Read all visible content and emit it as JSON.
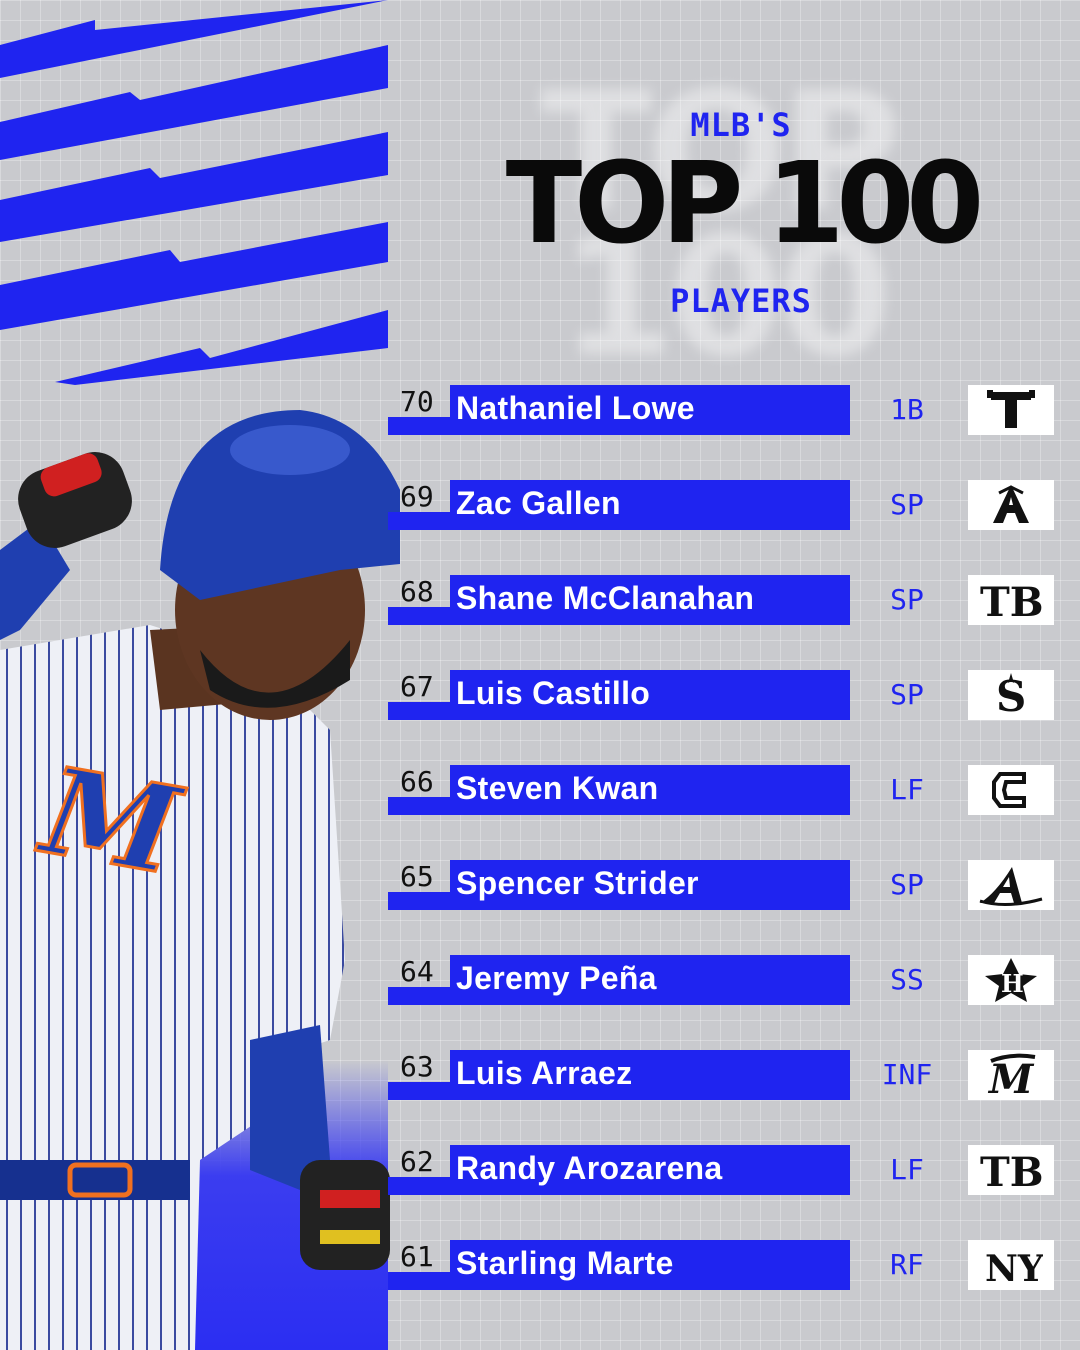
{
  "header": {
    "kicker": "MLB'S",
    "title": "TOP 100",
    "subtitle": "PLAYERS",
    "ghost_top": "TOP",
    "ghost_bottom": "100"
  },
  "colors": {
    "accent": "#1f24f0",
    "background": "#c9cace",
    "title": "#0a0a0a"
  },
  "players": [
    {
      "rank": "70",
      "name": "Nathaniel Lowe",
      "position": "1B",
      "team_logo": "rangers-logo-icon"
    },
    {
      "rank": "69",
      "name": "Zac Gallen",
      "position": "SP",
      "team_logo": "diamondbacks-logo-icon"
    },
    {
      "rank": "68",
      "name": "Shane McClanahan",
      "position": "SP",
      "team_logo": "rays-logo-icon"
    },
    {
      "rank": "67",
      "name": "Luis Castillo",
      "position": "SP",
      "team_logo": "mariners-logo-icon"
    },
    {
      "rank": "66",
      "name": "Steven Kwan",
      "position": "LF",
      "team_logo": "guardians-logo-icon"
    },
    {
      "rank": "65",
      "name": "Spencer Strider",
      "position": "SP",
      "team_logo": "braves-logo-icon"
    },
    {
      "rank": "64",
      "name": "Jeremy Peña",
      "position": "SS",
      "team_logo": "astros-logo-icon"
    },
    {
      "rank": "63",
      "name": "Luis Arraez",
      "position": "INF",
      "team_logo": "marlins-logo-icon"
    },
    {
      "rank": "62",
      "name": "Randy Arozarena",
      "position": "LF",
      "team_logo": "rays-logo-icon"
    },
    {
      "rank": "61",
      "name": "Starling Marte",
      "position": "RF",
      "team_logo": "mets-logo-icon"
    }
  ]
}
